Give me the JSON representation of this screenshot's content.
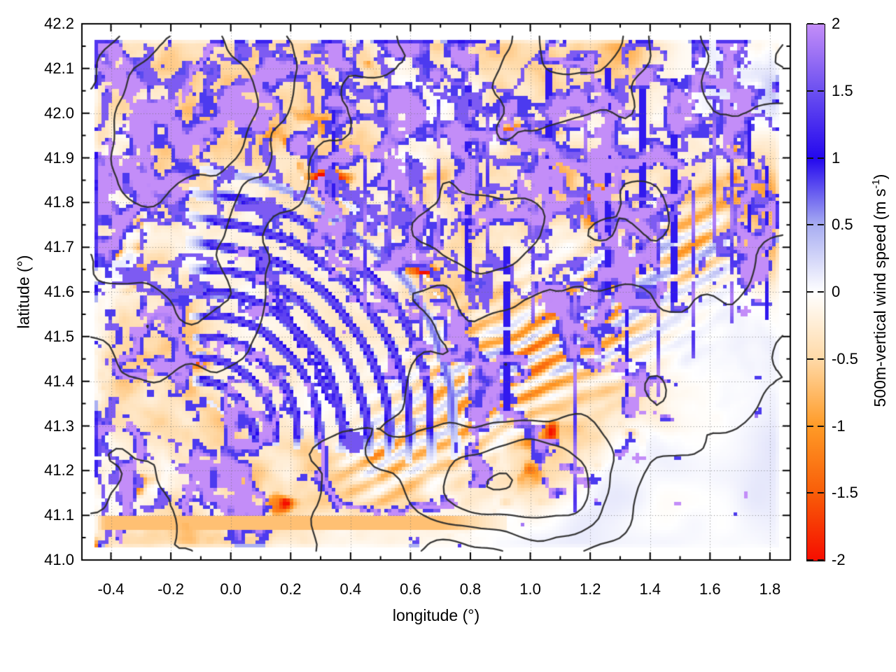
{
  "figure": {
    "background": "#ffffff",
    "plot_frame_color": "#000000"
  },
  "chart_data": {
    "type": "heatmap",
    "title": "",
    "xlabel": "longitude (°)",
    "ylabel": "latitude (°)",
    "colorbar_label": "500m-vertical wind speed (m s^-1)",
    "colorbar_label_parts": {
      "prefix": "500m-vertical wind speed (m s",
      "superscript": "-1",
      "suffix": ")"
    },
    "xlim": [
      -0.497,
      1.868
    ],
    "ylim": [
      41.0,
      42.2
    ],
    "x_tick_values": [
      -0.4,
      -0.2,
      0.0,
      0.2,
      0.4,
      0.6,
      0.8,
      1.0,
      1.2,
      1.4,
      1.6,
      1.8
    ],
    "x_tick_labels": [
      "-0.4",
      "-0.2",
      "0.0",
      "0.2",
      "0.4",
      "0.6",
      "0.8",
      "1.0",
      "1.2",
      "1.4",
      "1.6",
      "1.8"
    ],
    "x_minor_step": 0.1,
    "y_tick_values": [
      41.0,
      41.1,
      41.2,
      41.3,
      41.4,
      41.5,
      41.6,
      41.7,
      41.8,
      41.9,
      42.0,
      42.1,
      42.2
    ],
    "y_tick_labels": [
      "41.0",
      "41.1",
      "41.2",
      "41.3",
      "41.4",
      "41.5",
      "41.6",
      "41.7",
      "41.8",
      "41.9",
      "42.0",
      "42.1",
      "42.2"
    ],
    "y_minor_step": 0.05,
    "grid_style": "dotted gray graticule at major ticks",
    "heatmap_extent": {
      "lon": [
        -0.46,
        1.84
      ],
      "lat": [
        41.02,
        42.17
      ]
    },
    "estimated_grid_cells": [
      198,
      147
    ],
    "colorbar": {
      "range": [
        -2,
        2
      ],
      "tick_values": [
        2,
        1.5,
        1,
        0.5,
        0,
        -0.5,
        -1,
        -1.5,
        -2
      ],
      "tick_labels": [
        "2",
        "1.5",
        "1",
        "0.5",
        "0",
        "-0.5",
        "-1",
        "-1.5",
        "-2"
      ],
      "stops": [
        {
          "value": -2.0,
          "color": "#f60d00"
        },
        {
          "value": -1.5,
          "color": "#f85c08"
        },
        {
          "value": -1.0,
          "color": "#ff9a26"
        },
        {
          "value": -0.5,
          "color": "#ffd9a6"
        },
        {
          "value": 0.0,
          "color": "#ffffff"
        },
        {
          "value": 0.5,
          "color": "#a9aef2"
        },
        {
          "value": 1.0,
          "color": "#2408ee"
        },
        {
          "value": 1.5,
          "color": "#6b4ff0"
        },
        {
          "value": 2.0,
          "color": "#c38df8"
        }
      ]
    },
    "contours": {
      "color": "#2d2d2d",
      "line_width": 2.3,
      "description": "black terrain/elevation contour lines overlaid on the wind field; nested closed loops over high ground (bottom-center and northwest) and a long stepped diagonal contour crossing the calm southeast region",
      "levels_count": 5
    },
    "features": [
      "dense turbulent field of narrow updraft filaments (purple/blue, +1 to +2 m/s) embedded in orange downdraft cells (-0.5 to -1.5 m/s) covering the northern two-thirds of the domain",
      "curved gravity-wave bands of alternating updraft/downdraft radiating northeastward in the southwest quadrant",
      "quasi-vertical updraft streaks between lon 0.3 and 1.6, including a long narrow needle near lon 1.15 reaching down to lat 41.12",
      "diagonal wave train of alternating orange/blue bands from (0.5, 41.35) toward (1.0, 41.55)",
      "calm pale region (|w| < 0.3 m/s) in the southeast corner of the domain",
      "scattered intense downdraft spots near -2 m/s (red) inside the turbulent area",
      "deep blue updraft blob near (0.42, 41.26)",
      "soft white fade at the edges of the data region, inset from the axes frame"
    ],
    "approx_regional_mean_w": {
      "units": "m/s, visually estimated local means; instantaneous values span -2 to +2",
      "lon_centers": [
        -0.4,
        -0.2,
        0.0,
        0.2,
        0.4,
        0.6,
        0.8,
        1.0,
        1.2,
        1.4,
        1.6,
        1.8
      ],
      "lat_centers": [
        42.1,
        41.95,
        41.8,
        41.65,
        41.5,
        41.35,
        41.2,
        41.05
      ],
      "values": [
        [
          -0.2,
          -0.3,
          -0.3,
          -0.2,
          -0.3,
          -0.2,
          -0.1,
          -0.2,
          -0.1,
          0.1,
          0.2,
          0.1
        ],
        [
          -0.3,
          -0.3,
          -0.3,
          -0.3,
          -0.2,
          -0.2,
          -0.1,
          -0.2,
          -0.2,
          -0.1,
          0.1,
          0.2
        ],
        [
          -0.2,
          -0.3,
          -0.3,
          -0.2,
          -0.3,
          -0.2,
          -0.2,
          -0.1,
          -0.2,
          0.0,
          0.1,
          0.0
        ],
        [
          -0.2,
          -0.2,
          -0.1,
          -0.2,
          -0.2,
          -0.1,
          -0.1,
          -0.1,
          -0.1,
          0.0,
          0.1,
          0.1
        ],
        [
          -0.2,
          -0.1,
          0.0,
          0.1,
          0.0,
          -0.1,
          -0.2,
          -0.1,
          0.0,
          0.1,
          0.0,
          0.1
        ],
        [
          -0.3,
          -0.1,
          0.1,
          0.2,
          0.1,
          0.0,
          -0.2,
          -0.2,
          0.0,
          0.1,
          0.1,
          0.0
        ],
        [
          -0.3,
          -0.2,
          0.0,
          0.1,
          0.1,
          0.0,
          -0.1,
          -0.1,
          0.1,
          0.1,
          0.0,
          0.1
        ],
        [
          -0.4,
          -0.3,
          -0.1,
          0.0,
          0.0,
          0.0,
          0.1,
          0.1,
          0.1,
          0.1,
          0.1,
          0.1
        ]
      ]
    }
  }
}
